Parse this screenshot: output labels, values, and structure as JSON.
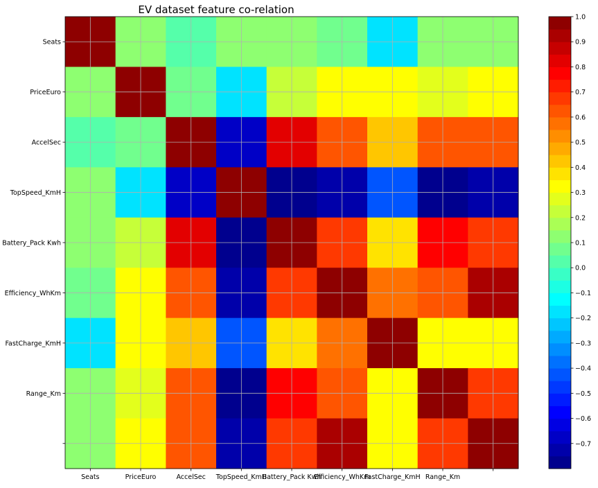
{
  "chart_data": {
    "type": "heatmap",
    "title": "EV dataset feature co-relation",
    "xlabel": "",
    "ylabel": "",
    "x_tick_labels": [
      "Seats",
      "PriceEuro",
      "AccelSec",
      "TopSpeed_KmH",
      "Battery_Pack Kwh",
      "Efficiency_WhKm",
      "FastCharge_KmH",
      "Range_Km",
      ""
    ],
    "y_tick_labels": [
      "Seats",
      "PriceEuro",
      "AccelSec",
      "TopSpeed_KmH",
      "Battery_Pack Kwh",
      "Efficiency_WhKm",
      "FastCharge_KmH",
      "Range_Km",
      ""
    ],
    "grid": true,
    "colormap": "jet",
    "value_range": [
      -0.8,
      1.0
    ],
    "colorbar": {
      "ticks": [
        1.0,
        0.9,
        0.8,
        0.7,
        0.6,
        0.5,
        0.4,
        0.3,
        0.2,
        0.1,
        0.0,
        -0.1,
        -0.2,
        -0.3,
        -0.4,
        -0.5,
        -0.6,
        -0.7
      ],
      "tick_labels": [
        "1.0",
        "0.9",
        "0.8",
        "0.7",
        "0.6",
        "0.5",
        "0.4",
        "0.3",
        "0.2",
        "0.1",
        "0.0",
        "−0.1",
        "−0.2",
        "−0.3",
        "−0.4",
        "−0.5",
        "−0.6",
        "−0.7"
      ],
      "levels": 36,
      "position": "right"
    },
    "matrix": [
      [
        1.0,
        0.13,
        0.02,
        0.13,
        0.13,
        0.05,
        -0.2,
        0.13,
        0.13
      ],
      [
        0.13,
        1.0,
        0.05,
        -0.17,
        0.2,
        0.32,
        0.32,
        0.25,
        0.3
      ],
      [
        0.02,
        0.05,
        1.0,
        -0.66,
        0.8,
        0.63,
        0.4,
        0.63,
        0.63
      ],
      [
        0.13,
        -0.17,
        -0.66,
        1.0,
        -0.78,
        -0.71,
        -0.43,
        -0.78,
        -0.72
      ],
      [
        0.13,
        0.2,
        0.8,
        -0.78,
        1.0,
        0.7,
        0.38,
        0.75,
        0.68
      ],
      [
        0.05,
        0.32,
        0.63,
        -0.71,
        0.7,
        1.0,
        0.58,
        0.63,
        0.9
      ],
      [
        -0.2,
        0.32,
        0.4,
        -0.43,
        0.38,
        0.58,
        1.0,
        0.3,
        0.3
      ],
      [
        0.13,
        0.25,
        0.63,
        -0.78,
        0.75,
        0.63,
        0.3,
        1.0,
        0.68
      ],
      [
        0.13,
        0.3,
        0.63,
        -0.72,
        0.68,
        0.9,
        0.3,
        0.68,
        1.0
      ]
    ]
  }
}
